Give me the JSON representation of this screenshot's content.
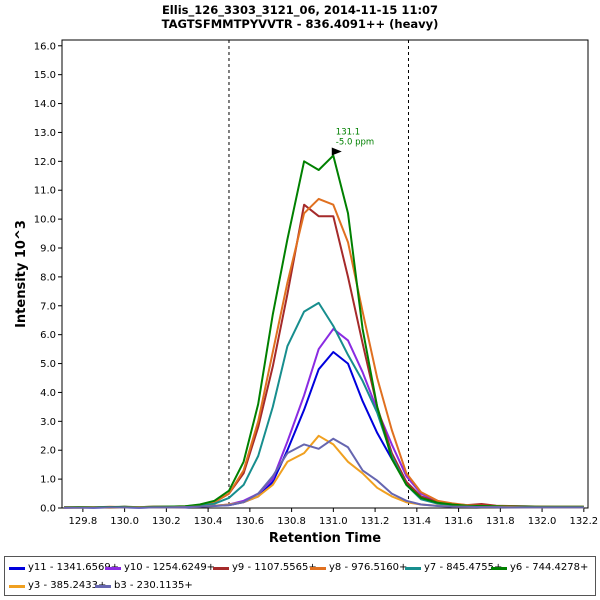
{
  "chart_data": {
    "type": "line",
    "title": "Ellis_126_3303_3121_06, 2014-11-15 11:07",
    "subtitle": "TAGTSFMMTPYVVTR - 836.4091++ (heavy)",
    "xlabel": "Retention Time",
    "ylabel": "Intensity 10^3",
    "xlim": [
      129.7,
      132.22
    ],
    "ylim": [
      0,
      16.2
    ],
    "x_ticks": [
      "129.8",
      "130.0",
      "130.2",
      "130.4",
      "130.6",
      "130.8",
      "131.0",
      "131.2",
      "131.4",
      "131.6",
      "131.8",
      "132.0",
      "132.2"
    ],
    "y_ticks": [
      "0.0",
      "1.0",
      "2.0",
      "3.0",
      "4.0",
      "5.0",
      "6.0",
      "7.0",
      "8.0",
      "9.0",
      "10.0",
      "11.0",
      "12.0",
      "13.0",
      "14.0",
      "15.0",
      "16.0"
    ],
    "vlines": [
      130.5,
      131.36
    ],
    "annotation": {
      "x": 131.05,
      "y": 12.2,
      "line1": "131.1",
      "line2": "-5.0 ppm",
      "color": "#008000"
    },
    "x": [
      129.71,
      129.78,
      129.85,
      129.93,
      130.0,
      130.07,
      130.14,
      130.21,
      130.29,
      130.36,
      130.43,
      130.5,
      130.57,
      130.64,
      130.71,
      130.78,
      130.86,
      130.93,
      131.0,
      131.07,
      131.14,
      131.21,
      131.28,
      131.35,
      131.42,
      131.5,
      131.57,
      131.64,
      131.71,
      131.78,
      131.85,
      131.92,
      131.99,
      132.06,
      132.13,
      132.2
    ],
    "series": [
      {
        "name": "y11 - 1341.6569+",
        "color": "#0000dd",
        "values": [
          0.01,
          0.02,
          0.01,
          0.02,
          0.02,
          0.01,
          0.02,
          0.03,
          0.02,
          0.05,
          0.08,
          0.1,
          0.2,
          0.4,
          0.9,
          2.0,
          3.4,
          4.8,
          5.4,
          5.0,
          3.7,
          2.6,
          1.7,
          0.9,
          0.4,
          0.2,
          0.1,
          0.06,
          0.04,
          0.03,
          0.03,
          0.02,
          0.02,
          0.02,
          0.02,
          0.02
        ]
      },
      {
        "name": "y10 - 1254.6249+",
        "color": "#8a2be2",
        "values": [
          0.01,
          0.02,
          0.02,
          0.02,
          0.03,
          0.02,
          0.03,
          0.03,
          0.03,
          0.06,
          0.08,
          0.12,
          0.25,
          0.5,
          1.0,
          2.3,
          3.9,
          5.5,
          6.2,
          5.8,
          4.7,
          3.4,
          2.2,
          1.1,
          0.5,
          0.22,
          0.12,
          0.07,
          0.05,
          0.04,
          0.03,
          0.03,
          0.02,
          0.02,
          0.02,
          0.02
        ]
      },
      {
        "name": "y9 - 1107.5565+",
        "color": "#a52a2a",
        "values": [
          0.03,
          0.02,
          0.03,
          0.02,
          0.04,
          0.03,
          0.04,
          0.04,
          0.05,
          0.1,
          0.2,
          0.5,
          1.2,
          2.8,
          4.9,
          7.4,
          10.5,
          10.1,
          10.1,
          8.0,
          5.7,
          3.5,
          1.9,
          0.9,
          0.4,
          0.2,
          0.14,
          0.1,
          0.14,
          0.08,
          0.07,
          0.06,
          0.05,
          0.04,
          0.04,
          0.04
        ]
      },
      {
        "name": "y8 - 976.5160+",
        "color": "#e07020",
        "values": [
          0.02,
          0.03,
          0.02,
          0.04,
          0.03,
          0.03,
          0.04,
          0.05,
          0.06,
          0.1,
          0.2,
          0.5,
          1.3,
          3.0,
          5.4,
          7.8,
          10.2,
          10.7,
          10.5,
          9.2,
          6.8,
          4.5,
          2.7,
          1.2,
          0.55,
          0.25,
          0.16,
          0.1,
          0.08,
          0.07,
          0.06,
          0.05,
          0.05,
          0.04,
          0.04,
          0.04
        ]
      },
      {
        "name": "y7 - 845.4755+",
        "color": "#178e8e",
        "values": [
          0.02,
          0.02,
          0.03,
          0.03,
          0.03,
          0.02,
          0.03,
          0.04,
          0.05,
          0.08,
          0.15,
          0.35,
          0.8,
          1.8,
          3.5,
          5.6,
          6.8,
          7.1,
          6.3,
          5.3,
          4.4,
          3.3,
          1.8,
          0.8,
          0.3,
          0.15,
          0.1,
          0.07,
          0.06,
          0.05,
          0.04,
          0.04,
          0.03,
          0.03,
          0.03,
          0.03
        ]
      },
      {
        "name": "y6 - 744.4278+",
        "color": "#008000",
        "values": [
          0.02,
          0.03,
          0.03,
          0.03,
          0.04,
          0.03,
          0.04,
          0.05,
          0.06,
          0.12,
          0.25,
          0.6,
          1.6,
          3.6,
          6.7,
          9.3,
          12.0,
          11.7,
          12.2,
          10.2,
          6.2,
          3.5,
          1.7,
          0.8,
          0.35,
          0.18,
          0.12,
          0.08,
          0.07,
          0.06,
          0.05,
          0.05,
          0.04,
          0.04,
          0.04,
          0.04
        ]
      },
      {
        "name": "y3 - 385.2433+",
        "color": "#f0a020",
        "values": [
          0.01,
          0.01,
          0.02,
          0.01,
          0.02,
          0.02,
          0.02,
          0.02,
          0.03,
          0.05,
          0.08,
          0.12,
          0.2,
          0.4,
          0.8,
          1.6,
          1.9,
          2.5,
          2.2,
          1.6,
          1.2,
          0.7,
          0.4,
          0.2,
          0.12,
          0.08,
          0.05,
          0.04,
          0.03,
          0.03,
          0.03,
          0.02,
          0.02,
          0.02,
          0.02,
          0.02
        ]
      },
      {
        "name": "b3 - 230.1135+",
        "color": "#6666b0",
        "values": [
          0.01,
          0.01,
          0.01,
          0.02,
          0.02,
          0.01,
          0.02,
          0.02,
          0.03,
          0.05,
          0.07,
          0.1,
          0.2,
          0.5,
          1.1,
          1.9,
          2.2,
          2.05,
          2.4,
          2.1,
          1.3,
          0.95,
          0.5,
          0.25,
          0.12,
          0.07,
          0.05,
          0.04,
          0.03,
          0.03,
          0.02,
          0.02,
          0.02,
          0.02,
          0.02,
          0.02
        ]
      }
    ]
  }
}
